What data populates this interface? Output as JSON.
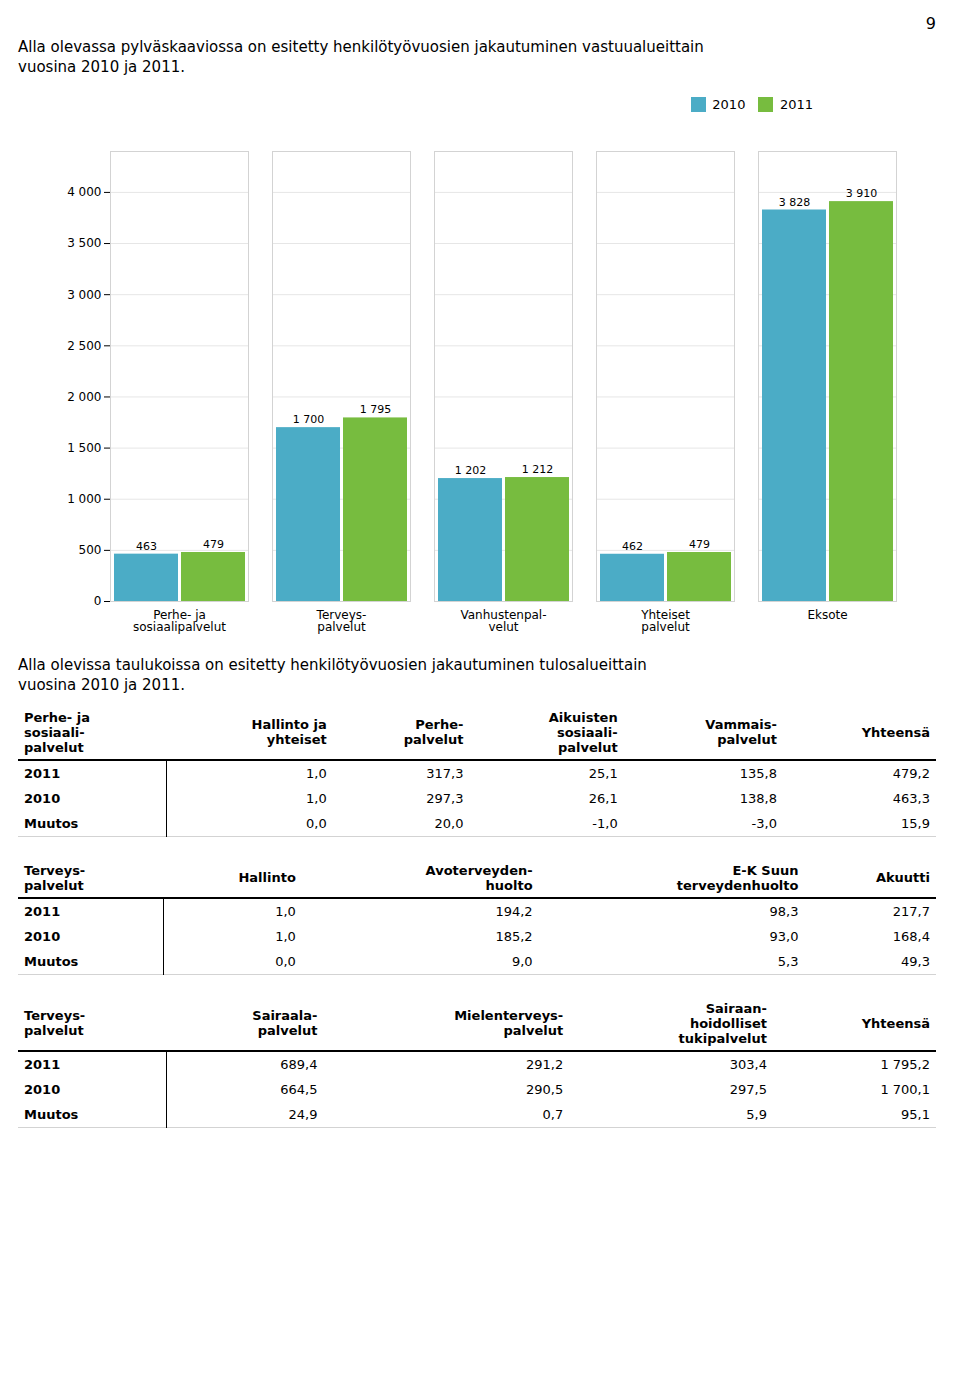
{
  "page_number": "9",
  "chart_intro": "Alla olevassa pylväskaaviossa on esitetty henkilötyövuosien jakautuminen vastuualueittain\nvuosina 2010 ja 2011.",
  "chart_data": {
    "type": "bar",
    "categories": [
      "Perhe- ja\nsosiaalipalvelut",
      "Terveys-\npalvelut",
      "Vanhustenpal-\nvelut",
      "Yhteiset\npalvelut",
      "Eksote"
    ],
    "series": [
      {
        "name": "2010",
        "color": "#4BACC6",
        "values": [
          463,
          1700,
          1202,
          462,
          3828
        ],
        "value_labels": [
          "463",
          "1 700",
          "1 202",
          "462",
          "3 828"
        ]
      },
      {
        "name": "2011",
        "color": "#77BC3F",
        "values": [
          479,
          1795,
          1212,
          479,
          3910
        ],
        "value_labels": [
          "479",
          "1 795",
          "1 212",
          "479",
          "3 910"
        ]
      }
    ],
    "ylim": [
      0,
      4400
    ],
    "yticks": [
      0,
      500,
      {
        "value": 1000,
        "label": "1 000"
      },
      {
        "value": 1500,
        "label": "1 500"
      },
      {
        "value": 2000,
        "label": "2 000"
      },
      {
        "value": 2500,
        "label": "2 500"
      },
      {
        "value": 3000,
        "label": "3 000"
      },
      {
        "value": 3500,
        "label": "3 500"
      },
      {
        "value": 4000,
        "label": "4 000"
      }
    ],
    "grid": true,
    "legend": "upper right",
    "data_labels": true
  },
  "table_intro": "Alla olevissa taulukoissa on esitetty henkilötyövuosien jakautuminen tulosalueittain\nvuosina 2010 ja 2011.",
  "tables": [
    {
      "columns": [
        "Perhe- ja\nsosiaali-\npalvelut",
        "Hallinto ja\nyhteiset",
        "Perhe-\npalvelut",
        "Aikuisten\nsosiaali-\npalvelut",
        "Vammais-\npalvelut",
        "Yhteensä"
      ],
      "rows": [
        [
          "2011",
          "1,0",
          "317,3",
          "25,1",
          "135,8",
          "479,2"
        ],
        [
          "2010",
          "1,0",
          "297,3",
          "26,1",
          "138,8",
          "463,3"
        ],
        [
          "Muutos",
          "0,0",
          "20,0",
          "-1,0",
          "-3,0",
          "15,9"
        ]
      ]
    },
    {
      "columns": [
        "Terveys-\npalvelut",
        "Hallinto",
        "Avoterveyden-\nhuolto",
        "E-K Suun\nterveydenhuolto",
        "Akuutti"
      ],
      "rows": [
        [
          "2011",
          "1,0",
          "194,2",
          "98,3",
          "217,7"
        ],
        [
          "2010",
          "1,0",
          "185,2",
          "93,0",
          "168,4"
        ],
        [
          "Muutos",
          "0,0",
          "9,0",
          "5,3",
          "49,3"
        ]
      ]
    },
    {
      "columns": [
        "Terveys-\npalvelut",
        "Sairaala-\npalvelut",
        "Mielenterveys-\npalvelut",
        "Sairaan-\nhoidolliset\ntukipalvelut",
        "Yhteensä"
      ],
      "rows": [
        [
          "2011",
          "689,4",
          "291,2",
          "303,4",
          "1 795,2"
        ],
        [
          "2010",
          "664,5",
          "290,5",
          "297,5",
          "1 700,1"
        ],
        [
          "Muutos",
          "24,9",
          "0,7",
          "5,9",
          "95,1"
        ]
      ]
    }
  ]
}
